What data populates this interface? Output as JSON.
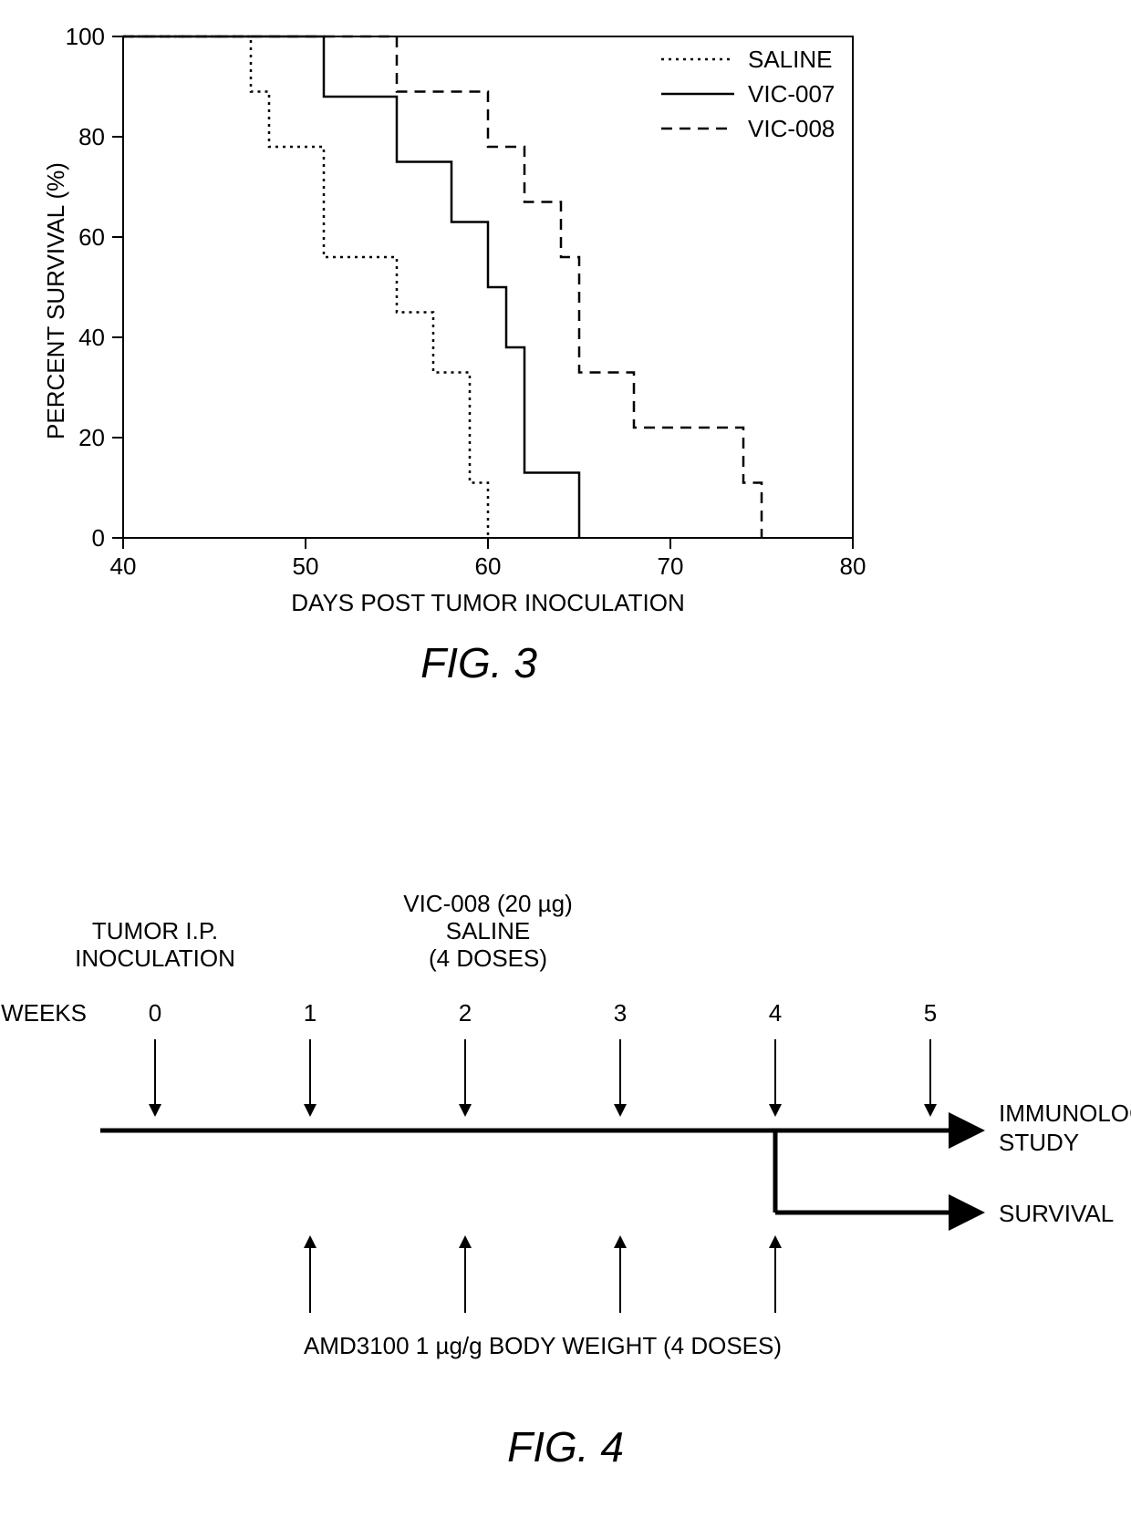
{
  "fig3": {
    "caption": "FIG. 3",
    "caption_fontsize": 46,
    "x_label": "DAYS POST TUMOR INOCULATION",
    "y_label": "PERCENT SURVIVAL (%)",
    "axis_label_fontsize": 26,
    "tick_fontsize": 26,
    "xlim": [
      40,
      80
    ],
    "ylim": [
      0,
      100
    ],
    "xticks": [
      40,
      50,
      60,
      70,
      80
    ],
    "yticks": [
      0,
      20,
      40,
      60,
      80,
      100
    ],
    "axis_color": "#000000",
    "background_color": "#ffffff",
    "line_width": 2.5,
    "legend": {
      "items": [
        {
          "label": "SALINE",
          "style": "dotted"
        },
        {
          "label": "VIC-007",
          "style": "solid"
        },
        {
          "label": "VIC-008",
          "style": "dashed"
        }
      ],
      "fontsize": 26
    },
    "series": {
      "saline": {
        "style": "dotted",
        "color": "#000000",
        "points": [
          [
            40,
            100
          ],
          [
            47,
            100
          ],
          [
            47,
            89
          ],
          [
            48,
            89
          ],
          [
            48,
            78
          ],
          [
            51,
            78
          ],
          [
            51,
            56
          ],
          [
            55,
            56
          ],
          [
            55,
            45
          ],
          [
            57,
            45
          ],
          [
            57,
            33
          ],
          [
            59,
            33
          ],
          [
            59,
            11
          ],
          [
            60,
            11
          ],
          [
            60,
            0
          ]
        ]
      },
      "vic007": {
        "style": "solid",
        "color": "#000000",
        "points": [
          [
            40,
            100
          ],
          [
            51,
            100
          ],
          [
            51,
            88
          ],
          [
            55,
            88
          ],
          [
            55,
            75
          ],
          [
            58,
            75
          ],
          [
            58,
            63
          ],
          [
            60,
            63
          ],
          [
            60,
            50
          ],
          [
            61,
            50
          ],
          [
            61,
            38
          ],
          [
            62,
            38
          ],
          [
            62,
            13
          ],
          [
            65,
            13
          ],
          [
            65,
            0
          ]
        ]
      },
      "vic008": {
        "style": "dashed",
        "color": "#000000",
        "points": [
          [
            40,
            100
          ],
          [
            55,
            100
          ],
          [
            55,
            89
          ],
          [
            60,
            89
          ],
          [
            60,
            78
          ],
          [
            62,
            78
          ],
          [
            62,
            67
          ],
          [
            64,
            67
          ],
          [
            64,
            56
          ],
          [
            65,
            56
          ],
          [
            65,
            33
          ],
          [
            68,
            33
          ],
          [
            68,
            22
          ],
          [
            74,
            22
          ],
          [
            74,
            11
          ],
          [
            75,
            11
          ],
          [
            75,
            0
          ]
        ]
      }
    }
  },
  "fig4": {
    "caption": "FIG. 4",
    "caption_fontsize": 46,
    "weeks_label": "WEEKS",
    "weeks": [
      "0",
      "1",
      "2",
      "3",
      "4",
      "5"
    ],
    "inoculation_line1": "TUMOR I.P.",
    "inoculation_line2": "INOCULATION",
    "top_treatment_line1": "VIC-008 (20 µg)",
    "top_treatment_line2": "SALINE",
    "top_treatment_line3": "(4 DOSES)",
    "bottom_treatment": "AMD3100 1 µg/g BODY WEIGHT (4 DOSES)",
    "outcome1_line1": "IMMUNOLOGY",
    "outcome1_line2": "STUDY",
    "outcome2": "SURVIVAL",
    "label_fontsize": 26,
    "axis_color": "#000000",
    "line_width": 5
  }
}
